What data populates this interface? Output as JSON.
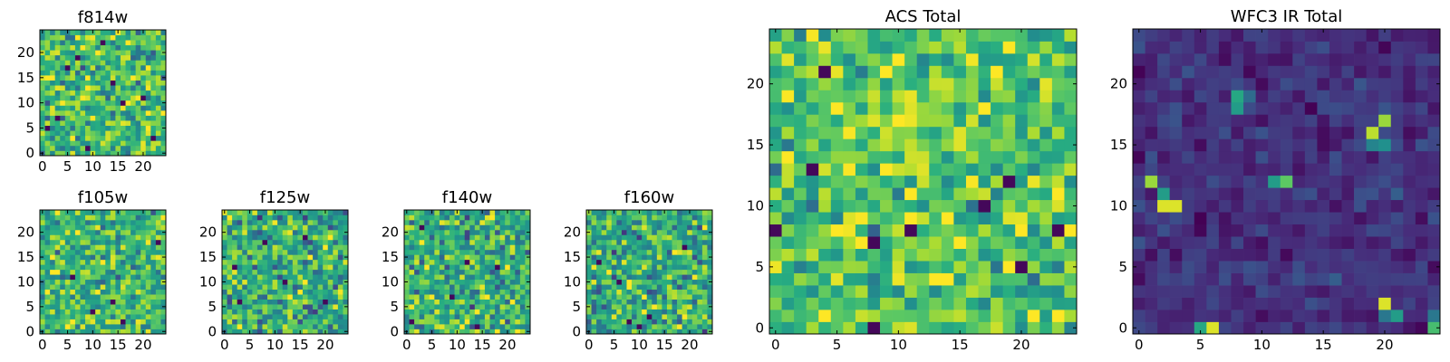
{
  "colormap": "viridis",
  "colors": {
    "viridis": [
      "#440154",
      "#472c7a",
      "#3b518b",
      "#2c718e",
      "#21908d",
      "#27ad81",
      "#5cc863",
      "#aadc32",
      "#fde725"
    ],
    "axis": "#000000",
    "background": "#ffffff"
  },
  "chart_data": [
    {
      "id": "f814w",
      "type": "heatmap",
      "title": "f814w",
      "grid_size": [
        25,
        25
      ],
      "xlim": [
        -0.5,
        24.5
      ],
      "ylim": [
        -0.5,
        24.5
      ],
      "xticks": [
        0,
        5,
        10,
        15,
        20
      ],
      "yticks": [
        0,
        5,
        10,
        15,
        20
      ],
      "value_range": [
        0,
        1
      ],
      "mean": 0.68,
      "spread": 0.22,
      "low_cells": [
        [
          3,
          7
        ],
        [
          16,
          10
        ],
        [
          5,
          17
        ],
        [
          12,
          22
        ],
        [
          20,
          11
        ],
        [
          9,
          1
        ],
        [
          1,
          5
        ],
        [
          22,
          3
        ],
        [
          14,
          14
        ],
        [
          7,
          19
        ]
      ],
      "high_cells": []
    },
    {
      "id": "f105w",
      "type": "heatmap",
      "title": "f105w",
      "grid_size": [
        25,
        25
      ],
      "xlim": [
        -0.5,
        24.5
      ],
      "ylim": [
        -0.5,
        24.5
      ],
      "xticks": [
        0,
        5,
        10,
        15,
        20
      ],
      "yticks": [
        0,
        5,
        10,
        15,
        20
      ],
      "value_range": [
        0,
        1
      ],
      "mean": 0.66,
      "spread": 0.2,
      "low_cells": [
        [
          6,
          11
        ],
        [
          14,
          6
        ],
        [
          16,
          2
        ],
        [
          10,
          4
        ],
        [
          23,
          18
        ]
      ],
      "high_cells": []
    },
    {
      "id": "f125w",
      "type": "heatmap",
      "title": "f125w",
      "grid_size": [
        25,
        25
      ],
      "xlim": [
        -0.5,
        24.5
      ],
      "ylim": [
        -0.5,
        24.5
      ],
      "xticks": [
        0,
        5,
        10,
        15,
        20
      ],
      "yticks": [
        0,
        5,
        10,
        15,
        20
      ],
      "value_range": [
        0,
        1
      ],
      "mean": 0.62,
      "spread": 0.22,
      "low_cells": [
        [
          2,
          13
        ],
        [
          3,
          6
        ],
        [
          12,
          10
        ],
        [
          20,
          6
        ],
        [
          16,
          19
        ],
        [
          8,
          18
        ]
      ],
      "high_cells": []
    },
    {
      "id": "f140w",
      "type": "heatmap",
      "title": "f140w",
      "grid_size": [
        25,
        25
      ],
      "xlim": [
        -0.5,
        24.5
      ],
      "ylim": [
        -0.5,
        24.5
      ],
      "xticks": [
        0,
        5,
        10,
        15,
        20
      ],
      "yticks": [
        0,
        5,
        10,
        15,
        20
      ],
      "value_range": [
        0,
        1
      ],
      "mean": 0.62,
      "spread": 0.22,
      "low_cells": [
        [
          1,
          2
        ],
        [
          9,
          7
        ],
        [
          12,
          14
        ],
        [
          3,
          21
        ],
        [
          18,
          13
        ],
        [
          14,
          1
        ]
      ],
      "high_cells": []
    },
    {
      "id": "f160w",
      "type": "heatmap",
      "title": "f160w",
      "grid_size": [
        25,
        25
      ],
      "xlim": [
        -0.5,
        24.5
      ],
      "ylim": [
        -0.5,
        24.5
      ],
      "xticks": [
        0,
        5,
        10,
        15,
        20
      ],
      "yticks": [
        0,
        5,
        10,
        15,
        20
      ],
      "value_range": [
        0,
        1
      ],
      "mean": 0.62,
      "spread": 0.22,
      "low_cells": [
        [
          10,
          1
        ],
        [
          12,
          3
        ],
        [
          6,
          10
        ],
        [
          2,
          14
        ],
        [
          19,
          17
        ],
        [
          8,
          2
        ]
      ],
      "high_cells": []
    },
    {
      "id": "acs_total",
      "type": "heatmap",
      "title": "ACS Total",
      "grid_size": [
        25,
        25
      ],
      "xlim": [
        -0.5,
        24.5
      ],
      "ylim": [
        -0.5,
        24.5
      ],
      "xticks": [
        0,
        5,
        10,
        15,
        20
      ],
      "yticks": [
        0,
        5,
        10,
        15,
        20
      ],
      "value_range": [
        0,
        1
      ],
      "mean": 0.72,
      "spread": 0.18,
      "low_cells": [
        [
          4,
          21
        ],
        [
          8,
          7
        ],
        [
          11,
          8
        ],
        [
          17,
          10
        ],
        [
          19,
          12
        ],
        [
          23,
          8
        ],
        [
          0,
          8
        ],
        [
          3,
          13
        ],
        [
          8,
          0
        ],
        [
          20,
          5
        ]
      ],
      "high_cells": []
    },
    {
      "id": "wfc3_ir_total",
      "type": "heatmap",
      "title": "WFC3 IR Total",
      "grid_size": [
        25,
        25
      ],
      "xlim": [
        -0.5,
        24.5
      ],
      "ylim": [
        -0.5,
        24.5
      ],
      "xticks": [
        0,
        5,
        10,
        15,
        20
      ],
      "yticks": [
        0,
        5,
        10,
        15,
        20
      ],
      "value_range": [
        0,
        1
      ],
      "mean": 0.14,
      "spread": 0.07,
      "low_cells": [],
      "high_cells": [
        [
          2,
          10,
          0.95
        ],
        [
          3,
          10,
          0.95
        ],
        [
          1,
          12,
          0.85
        ],
        [
          2,
          11,
          0.55
        ],
        [
          8,
          19,
          0.6
        ],
        [
          8,
          18,
          0.55
        ],
        [
          9,
          19,
          0.35
        ],
        [
          11,
          12,
          0.55
        ],
        [
          12,
          12,
          0.75
        ],
        [
          19,
          16,
          0.9
        ],
        [
          20,
          17,
          0.85
        ],
        [
          20,
          15,
          0.5
        ],
        [
          19,
          15,
          0.45
        ],
        [
          20,
          2,
          0.95
        ],
        [
          21,
          1,
          0.55
        ],
        [
          20,
          1,
          0.4
        ],
        [
          6,
          0,
          0.95
        ],
        [
          5,
          0,
          0.6
        ],
        [
          24,
          0,
          0.7
        ],
        [
          24,
          1,
          0.4
        ],
        [
          21,
          11,
          0.3
        ],
        [
          16,
          4,
          0.3
        ]
      ]
    }
  ]
}
